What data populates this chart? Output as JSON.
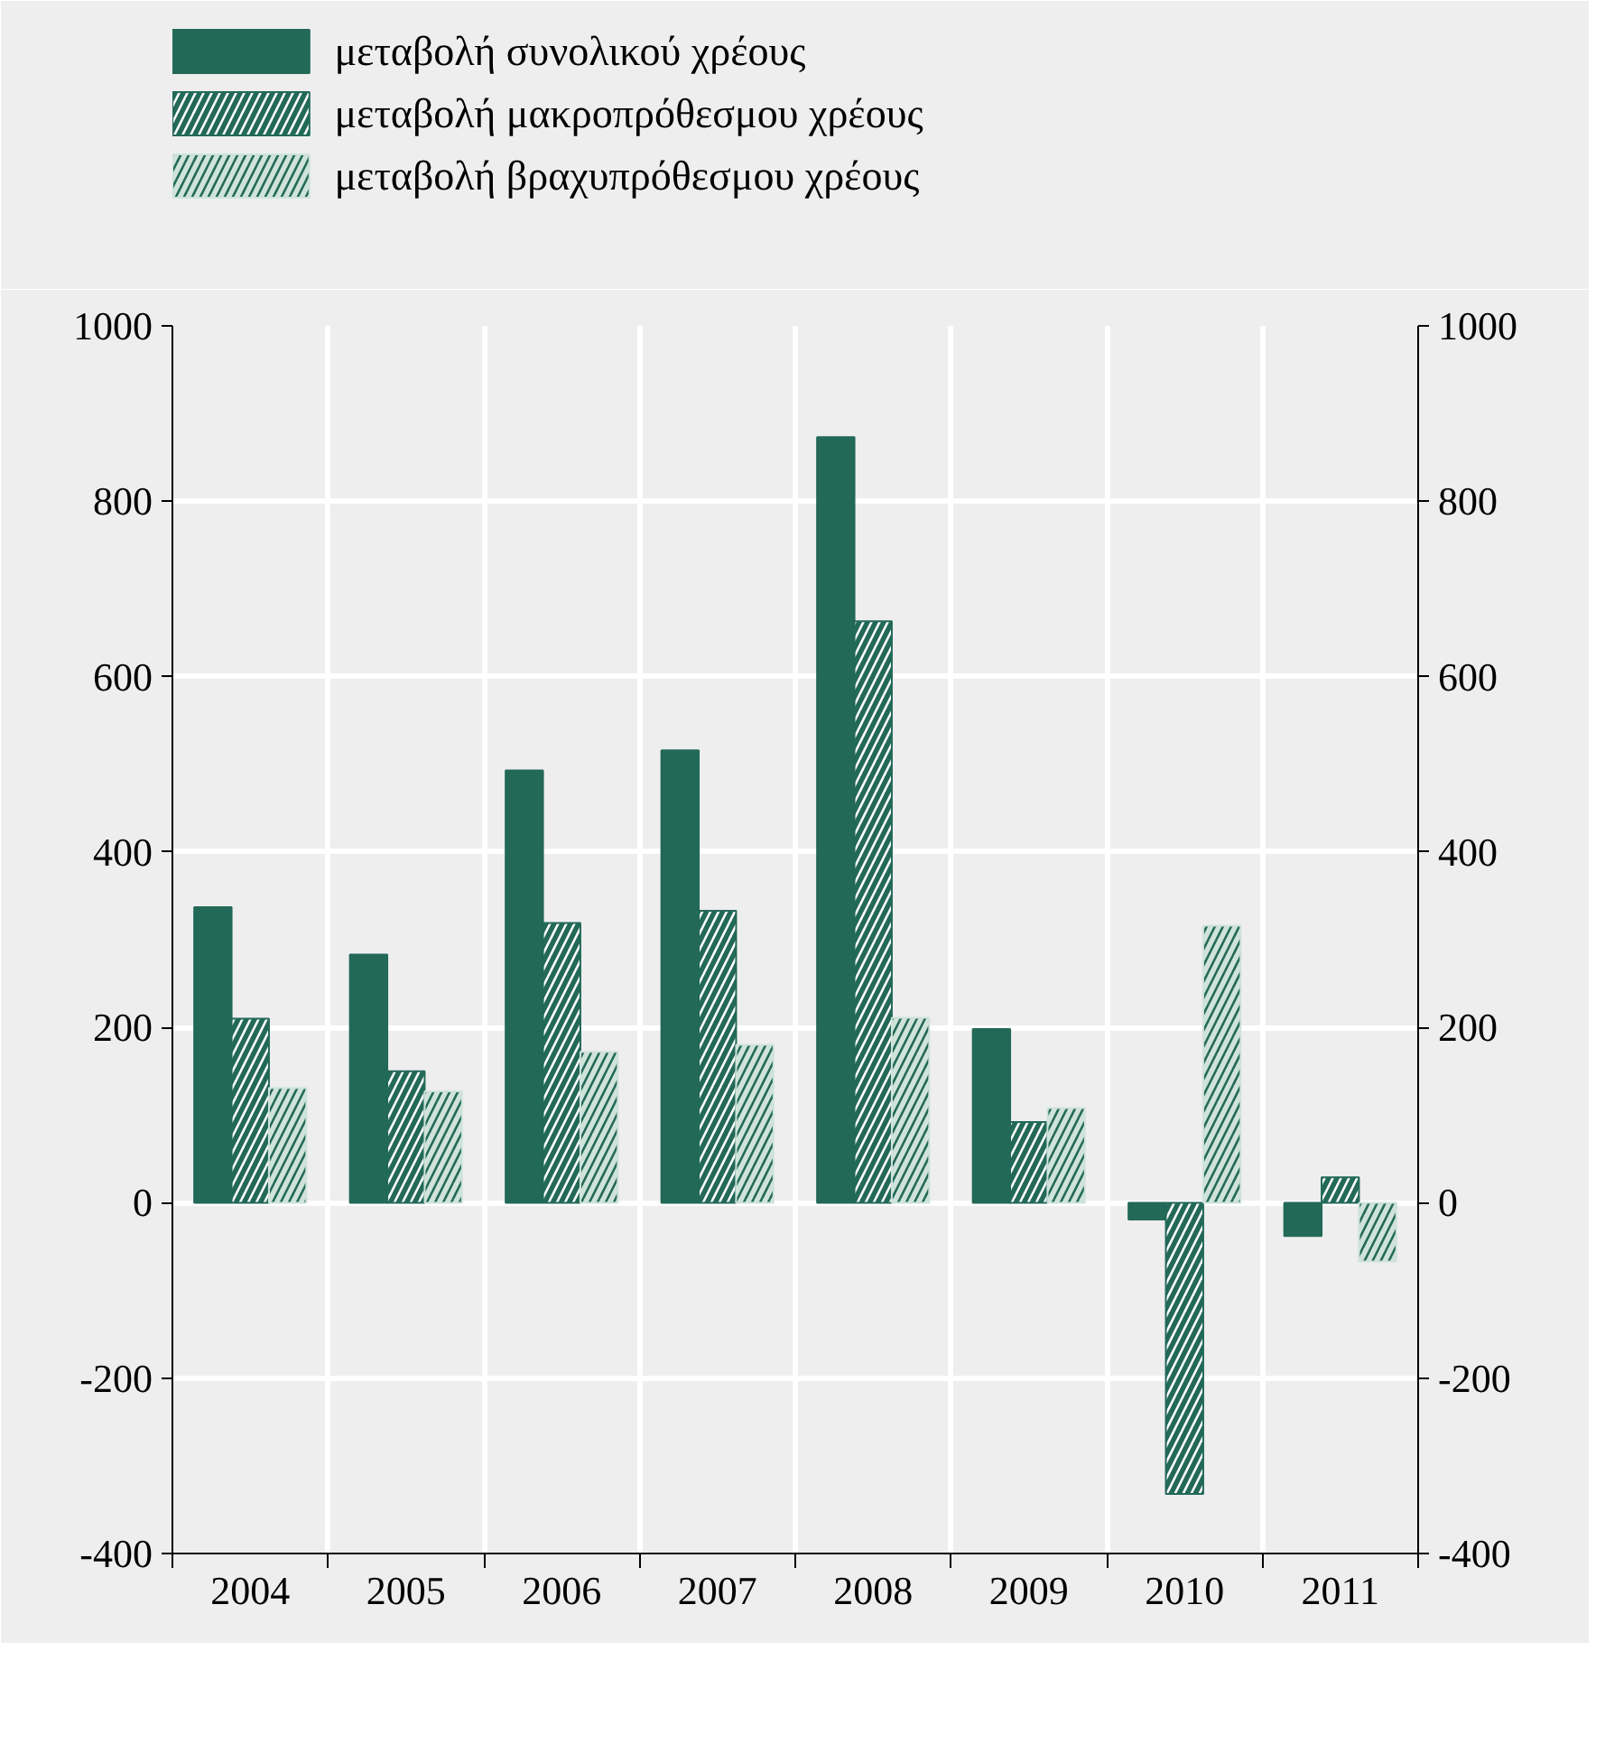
{
  "chart_data": {
    "type": "bar",
    "categories": [
      "2004",
      "2005",
      "2006",
      "2007",
      "2008",
      "2009",
      "2010",
      "2011"
    ],
    "series": [
      {
        "name": "μεταβολή συνολικού χρέους",
        "color": "#236958",
        "values": [
          337,
          283,
          493,
          516,
          873,
          198,
          -19,
          -38
        ]
      },
      {
        "name": "μεταβολή μακροπρόθεσμου χρέους",
        "color": "#236958",
        "values": [
          210,
          150,
          319,
          333,
          663,
          92,
          -332,
          29
        ]
      },
      {
        "name": "μεταβολή βραχυπρόθεσμου χρέους",
        "color": "#cfe3da",
        "values": [
          131,
          127,
          172,
          180,
          211,
          108,
          316,
          -67
        ]
      }
    ],
    "ylim": [
      -400,
      1000
    ],
    "yticks": [
      -400,
      -200,
      0,
      200,
      400,
      600,
      800,
      1000
    ],
    "y2lim": [
      -400,
      1000
    ],
    "y2ticks": [
      -400,
      -200,
      0,
      200,
      400,
      600,
      800,
      1000
    ],
    "grid": true,
    "legend": "top"
  }
}
